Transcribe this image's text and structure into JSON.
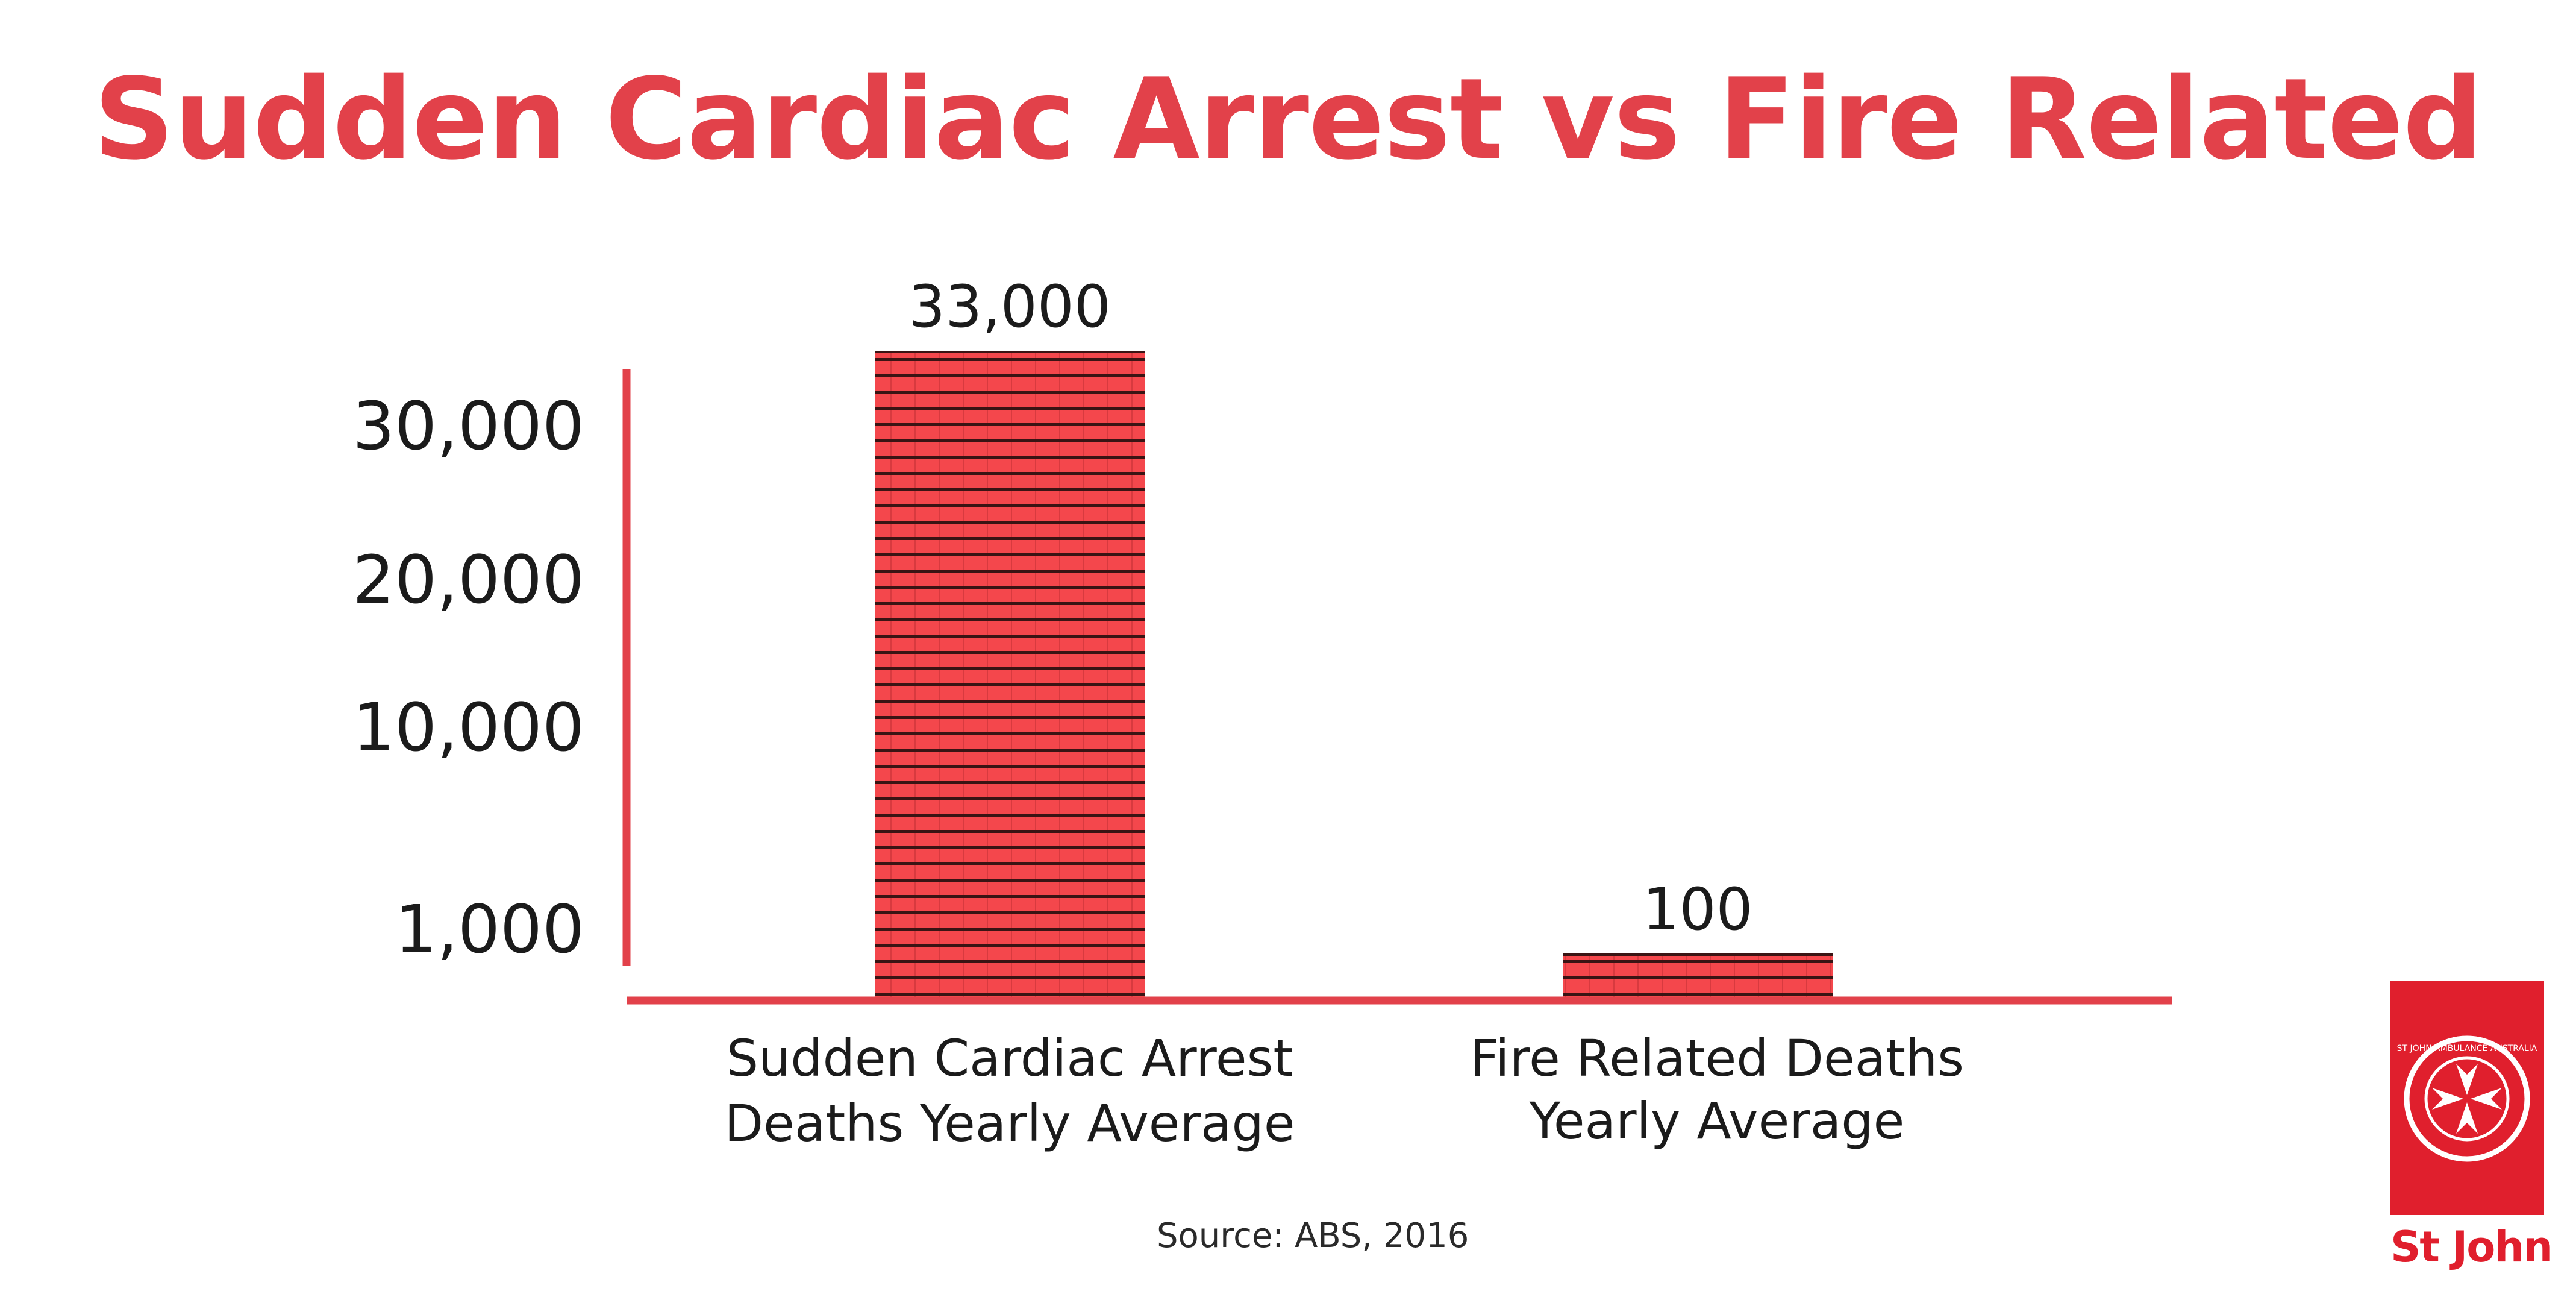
{
  "title": "Sudden Cardiac Arrest vs Fire Related",
  "source": "Source: ABS, 2016",
  "logo": {
    "text": "St John",
    "ring_text": "ST JOHN AMBULANCE AUSTRALIA"
  },
  "colors": {
    "accent": "#e2414a",
    "bar": "#f4474c",
    "logo_red": "#e01f2d",
    "text": "#1b1b1b"
  },
  "chart_data": {
    "type": "bar",
    "title": "Sudden Cardiac Arrest vs Fire Related",
    "categories": [
      [
        "Sudden Cardiac Arrest",
        "Deaths Yearly Average"
      ],
      [
        "Fire Related Deaths",
        "Yearly Average"
      ]
    ],
    "values": [
      33000,
      100
    ],
    "data_labels": [
      "33,000",
      "100"
    ],
    "y_ticks": [
      1000,
      10000,
      20000,
      30000
    ],
    "y_tick_labels": [
      "1,000",
      "10,000",
      "20,000",
      "30,000"
    ],
    "xlabel": "",
    "ylabel": "",
    "grid": false,
    "legend": "none"
  }
}
